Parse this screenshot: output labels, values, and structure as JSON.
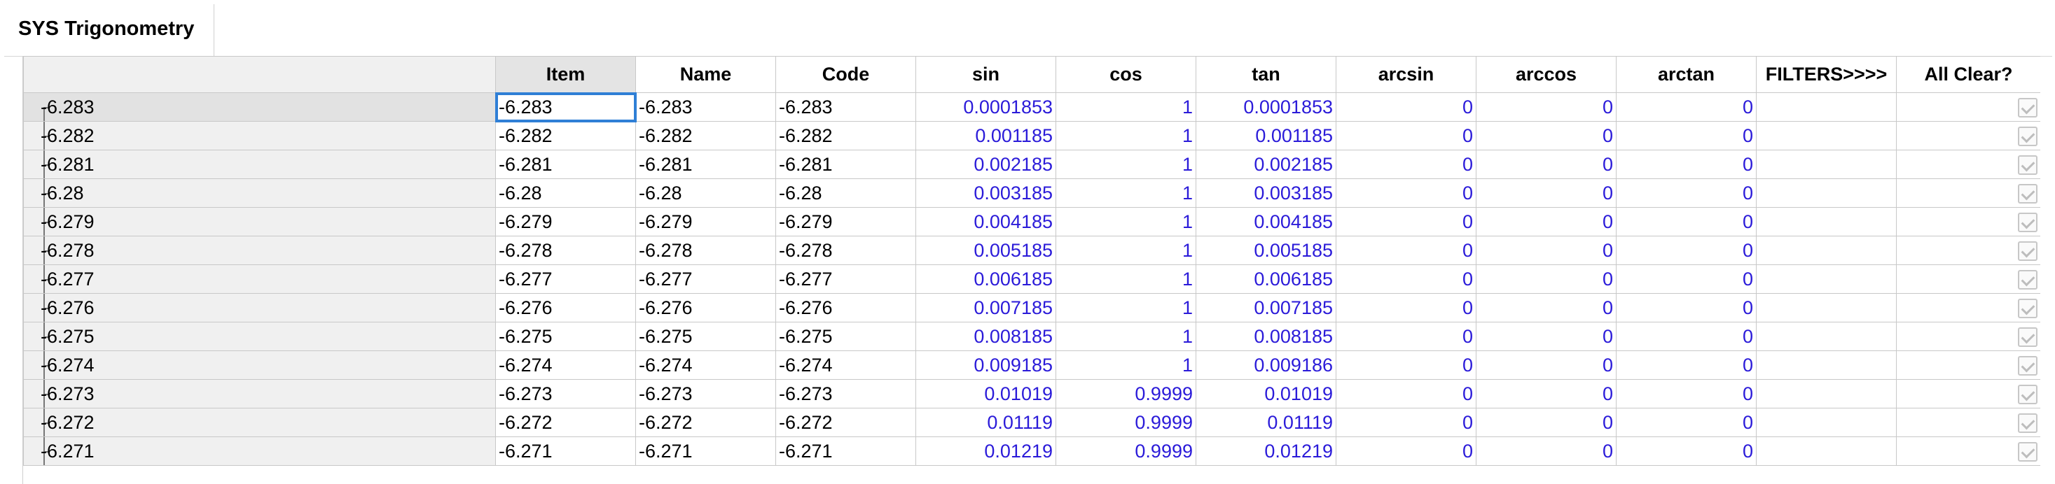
{
  "tab": {
    "title": "SYS Trigonometry"
  },
  "columns": [
    "",
    "Item",
    "Name",
    "Code",
    "sin",
    "cos",
    "tan",
    "arcsin",
    "arccos",
    "arctan",
    "FILTERS>>>>",
    "All Clear?"
  ],
  "rows": [
    {
      "tree": "-6.283",
      "item": "-6.283",
      "name": "-6.283",
      "code": "-6.283",
      "sin": "0.0001853",
      "cos": "1",
      "tan": "0.0001853",
      "arcsin": "0",
      "arccos": "0",
      "arctan": "0",
      "filters": "",
      "checked": true
    },
    {
      "tree": "-6.282",
      "item": "-6.282",
      "name": "-6.282",
      "code": "-6.282",
      "sin": "0.001185",
      "cos": "1",
      "tan": "0.001185",
      "arcsin": "0",
      "arccos": "0",
      "arctan": "0",
      "filters": "",
      "checked": true
    },
    {
      "tree": "-6.281",
      "item": "-6.281",
      "name": "-6.281",
      "code": "-6.281",
      "sin": "0.002185",
      "cos": "1",
      "tan": "0.002185",
      "arcsin": "0",
      "arccos": "0",
      "arctan": "0",
      "filters": "",
      "checked": true
    },
    {
      "tree": "-6.28",
      "item": "-6.28",
      "name": "-6.28",
      "code": "-6.28",
      "sin": "0.003185",
      "cos": "1",
      "tan": "0.003185",
      "arcsin": "0",
      "arccos": "0",
      "arctan": "0",
      "filters": "",
      "checked": true
    },
    {
      "tree": "-6.279",
      "item": "-6.279",
      "name": "-6.279",
      "code": "-6.279",
      "sin": "0.004185",
      "cos": "1",
      "tan": "0.004185",
      "arcsin": "0",
      "arccos": "0",
      "arctan": "0",
      "filters": "",
      "checked": true
    },
    {
      "tree": "-6.278",
      "item": "-6.278",
      "name": "-6.278",
      "code": "-6.278",
      "sin": "0.005185",
      "cos": "1",
      "tan": "0.005185",
      "arcsin": "0",
      "arccos": "0",
      "arctan": "0",
      "filters": "",
      "checked": true
    },
    {
      "tree": "-6.277",
      "item": "-6.277",
      "name": "-6.277",
      "code": "-6.277",
      "sin": "0.006185",
      "cos": "1",
      "tan": "0.006185",
      "arcsin": "0",
      "arccos": "0",
      "arctan": "0",
      "filters": "",
      "checked": true
    },
    {
      "tree": "-6.276",
      "item": "-6.276",
      "name": "-6.276",
      "code": "-6.276",
      "sin": "0.007185",
      "cos": "1",
      "tan": "0.007185",
      "arcsin": "0",
      "arccos": "0",
      "arctan": "0",
      "filters": "",
      "checked": true
    },
    {
      "tree": "-6.275",
      "item": "-6.275",
      "name": "-6.275",
      "code": "-6.275",
      "sin": "0.008185",
      "cos": "1",
      "tan": "0.008185",
      "arcsin": "0",
      "arccos": "0",
      "arctan": "0",
      "filters": "",
      "checked": true
    },
    {
      "tree": "-6.274",
      "item": "-6.274",
      "name": "-6.274",
      "code": "-6.274",
      "sin": "0.009185",
      "cos": "1",
      "tan": "0.009186",
      "arcsin": "0",
      "arccos": "0",
      "arctan": "0",
      "filters": "",
      "checked": true
    },
    {
      "tree": "-6.273",
      "item": "-6.273",
      "name": "-6.273",
      "code": "-6.273",
      "sin": "0.01019",
      "cos": "0.9999",
      "tan": "0.01019",
      "arcsin": "0",
      "arccos": "0",
      "arctan": "0",
      "filters": "",
      "checked": true
    },
    {
      "tree": "-6.272",
      "item": "-6.272",
      "name": "-6.272",
      "code": "-6.272",
      "sin": "0.01119",
      "cos": "0.9999",
      "tan": "0.01119",
      "arcsin": "0",
      "arccos": "0",
      "arctan": "0",
      "filters": "",
      "checked": true
    },
    {
      "tree": "-6.271",
      "item": "-6.271",
      "name": "-6.271",
      "code": "-6.271",
      "sin": "0.01219",
      "cos": "0.9999",
      "tan": "0.01219",
      "arcsin": "0",
      "arccos": "0",
      "arctan": "0",
      "filters": "",
      "checked": true
    }
  ],
  "colors": {
    "number_text": "#2b1bd9",
    "selection": "#2f7fd6"
  },
  "icons": {
    "tree_branch": "tree-branch-icon",
    "checkbox": "checkbox-checked-icon"
  }
}
